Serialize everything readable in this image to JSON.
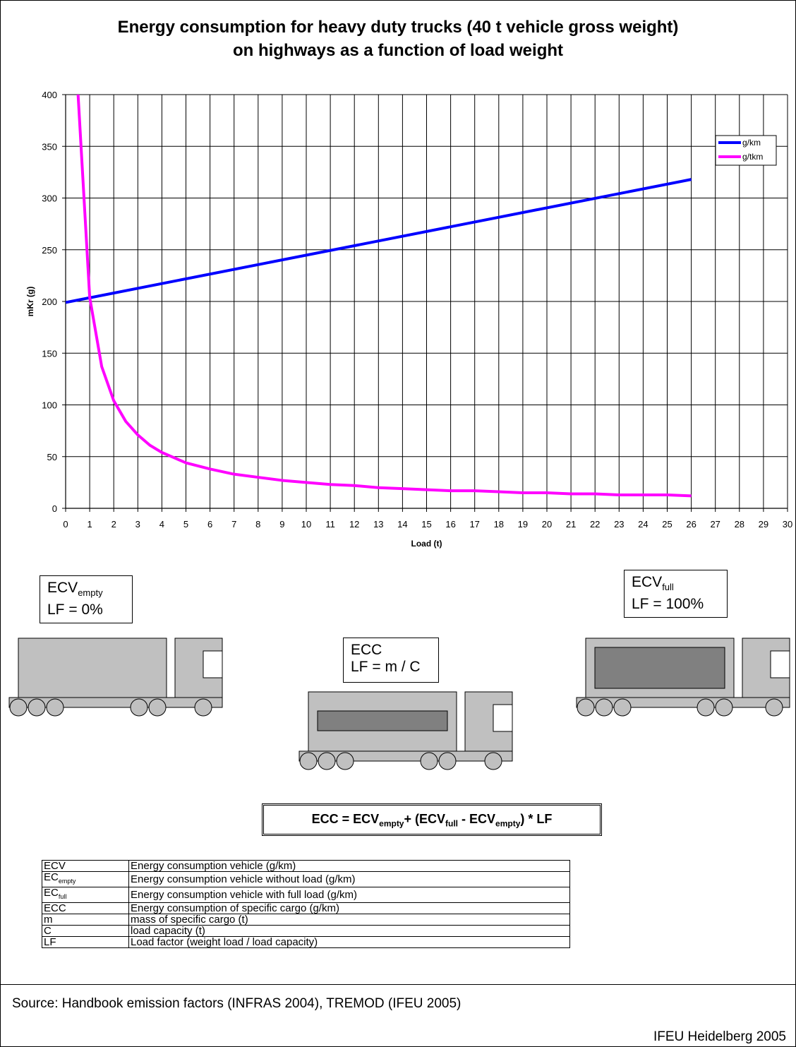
{
  "title_line1": "Energy consumption for heavy duty trucks (40 t vehicle gross weight)",
  "title_line2": "on highways as a function of load weight",
  "chart_data": {
    "type": "line",
    "xlabel": "Load (t)",
    "ylabel": "mKr (g)",
    "xlim": [
      0,
      30
    ],
    "ylim": [
      0,
      400
    ],
    "xticks": [
      "0",
      "1",
      "2",
      "3",
      "4",
      "5",
      "6",
      "7",
      "8",
      "9",
      "10",
      "11",
      "12",
      "13",
      "14",
      "15",
      "16",
      "17",
      "18",
      "19",
      "20",
      "21",
      "22",
      "23",
      "24",
      "25",
      "26",
      "27",
      "28",
      "29",
      "30"
    ],
    "yticks": [
      "0",
      "50",
      "100",
      "150",
      "200",
      "250",
      "300",
      "350",
      "400"
    ],
    "grid": true,
    "legend_position": "top-right",
    "series": [
      {
        "name": "g/km",
        "color": "#0000FF",
        "x": [
          0,
          26
        ],
        "y": [
          199,
          318
        ]
      },
      {
        "name": "g/tkm",
        "color": "#FF00FF",
        "x": [
          0.5,
          1,
          1.5,
          2,
          2.5,
          3,
          3.5,
          4,
          4.5,
          5,
          6,
          7,
          8,
          9,
          10,
          11,
          12,
          13,
          14,
          15,
          16,
          17,
          18,
          19,
          20,
          21,
          22,
          23,
          24,
          25,
          26
        ],
        "y": [
          407,
          204,
          137,
          104,
          84,
          71,
          61,
          54,
          49,
          44,
          38,
          33,
          30,
          27,
          25,
          23,
          22,
          20,
          19,
          18,
          17,
          17,
          16,
          15,
          15,
          14,
          14,
          13,
          13,
          13,
          12
        ]
      }
    ]
  },
  "boxes": {
    "empty_main": "ECV",
    "empty_sub": "empty",
    "empty_lf": "LF = 0%",
    "full_main": "ECV",
    "full_sub": "full",
    "full_lf": "LF = 100%",
    "ecc_main": "ECC",
    "ecc_lf": "LF = m / C"
  },
  "formula": {
    "p1": "ECC = ECV",
    "s1": "empty",
    "p2": "+ (ECV",
    "s2": "full",
    "p3": " - ECV",
    "s3": "empty",
    "p4": ") * LF"
  },
  "legend_rows": [
    {
      "key": "ECV",
      "key_sub": "",
      "desc": "Energy consumption vehicle (g/km)"
    },
    {
      "key": "EC",
      "key_sub": "empty",
      "desc": "Energy consumption vehicle without load (g/km)"
    },
    {
      "key": "EC",
      "key_sub": "full",
      "desc": "Energy consumption vehicle with full load (g/km)"
    },
    {
      "key": "ECC",
      "key_sub": "",
      "desc": "Energy consumption of specific cargo (g/km)"
    },
    {
      "key": "m",
      "key_sub": "",
      "desc": "mass of specific cargo (t)"
    },
    {
      "key": "C",
      "key_sub": "",
      "desc": "load capacity (t)"
    },
    {
      "key": "LF",
      "key_sub": "",
      "desc": "Load factor (weight load / load capacity)"
    }
  ],
  "source": "Source: Handbook emission factors (INFRAS 2004), TREMOD (IFEU 2005)",
  "credit": "IFEU Heidelberg 2005",
  "colors": {
    "truck_body": "#C0C0C0",
    "cargo": "#808080",
    "wheel": "#C0C0C0"
  }
}
